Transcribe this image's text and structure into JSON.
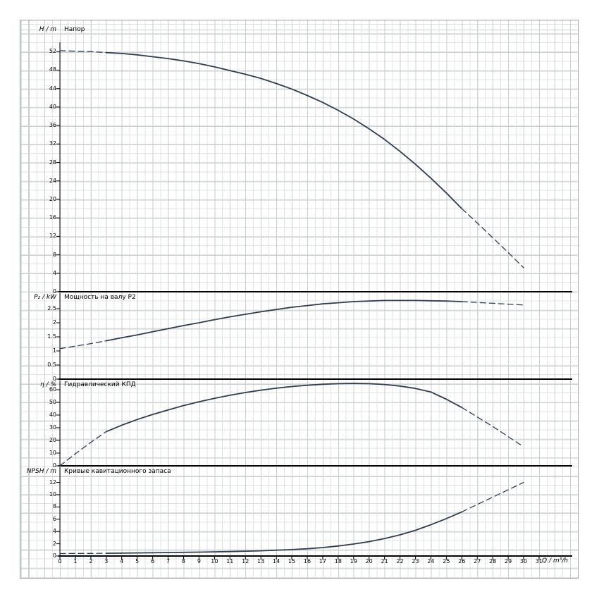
{
  "x_axis": {
    "label": "Q / m³/h",
    "ticks": [
      "0",
      "1",
      "2",
      "3",
      "4",
      "5",
      "6",
      "7",
      "8",
      "9",
      "10",
      "11",
      "12",
      "13",
      "14",
      "15",
      "16",
      "17",
      "18",
      "19",
      "20",
      "21",
      "22",
      "23",
      "24",
      "25",
      "26",
      "27",
      "28",
      "29",
      "30",
      "31"
    ]
  },
  "chart_data": [
    {
      "type": "line",
      "title": "Напор",
      "ylabel": "H / m",
      "xlabel": "Q / m³/h",
      "xlim": [
        0,
        31
      ],
      "ylim": [
        0,
        54
      ],
      "grid": true,
      "y_ticks": [
        0,
        4,
        8,
        12,
        16,
        20,
        24,
        28,
        32,
        36,
        40,
        44,
        48,
        52
      ],
      "y_tick_labels": [
        "0",
        "4",
        "8",
        "12",
        "16",
        "20",
        "24",
        "28",
        "32",
        "36",
        "40",
        "44",
        "48",
        "52"
      ],
      "series": [
        {
          "name": "H(Q) head curve",
          "segments": [
            {
              "dashed": true,
              "points": [
                [
                  0,
                  52.2
                ],
                [
                  1,
                  52.1
                ],
                [
                  2,
                  52.0
                ],
                [
                  3,
                  51.8
                ]
              ]
            },
            {
              "dashed": false,
              "points": [
                [
                  3,
                  51.8
                ],
                [
                  4,
                  51.6
                ],
                [
                  5,
                  51.3
                ],
                [
                  6,
                  50.9
                ],
                [
                  7,
                  50.5
                ],
                [
                  8,
                  50.0
                ],
                [
                  9,
                  49.4
                ],
                [
                  10,
                  48.7
                ],
                [
                  11,
                  47.9
                ],
                [
                  12,
                  47.1
                ],
                [
                  13,
                  46.2
                ],
                [
                  14,
                  45.1
                ],
                [
                  15,
                  43.9
                ],
                [
                  16,
                  42.5
                ],
                [
                  17,
                  41.0
                ],
                [
                  18,
                  39.3
                ],
                [
                  19,
                  37.4
                ],
                [
                  20,
                  35.3
                ],
                [
                  21,
                  33.0
                ],
                [
                  22,
                  30.4
                ],
                [
                  23,
                  27.6
                ],
                [
                  24,
                  24.6
                ],
                [
                  25,
                  21.4
                ],
                [
                  26,
                  18.0
                ]
              ]
            },
            {
              "dashed": true,
              "points": [
                [
                  26,
                  18.0
                ],
                [
                  27,
                  14.9
                ],
                [
                  28,
                  11.7
                ],
                [
                  29,
                  8.5
                ],
                [
                  30,
                  5.2
                ]
              ]
            }
          ]
        }
      ]
    },
    {
      "type": "line",
      "title": "Мощность на валу P2",
      "ylabel": "P₂ / kW",
      "xlim": [
        0,
        31
      ],
      "ylim": [
        0,
        3
      ],
      "grid": true,
      "y_ticks": [
        0,
        0.5,
        1,
        1.5,
        2,
        2.5
      ],
      "y_tick_labels": [
        "0",
        "0.5",
        "1",
        "1.5",
        "2",
        "2.5"
      ],
      "series": [
        {
          "name": "P2(Q) shaft power curve",
          "segments": [
            {
              "dashed": true,
              "points": [
                [
                  0,
                  1.08
                ],
                [
                  1,
                  1.17
                ],
                [
                  2,
                  1.26
                ],
                [
                  3,
                  1.36
                ]
              ]
            },
            {
              "dashed": false,
              "points": [
                [
                  3,
                  1.36
                ],
                [
                  4,
                  1.47
                ],
                [
                  5,
                  1.57
                ],
                [
                  6,
                  1.68
                ],
                [
                  7,
                  1.79
                ],
                [
                  8,
                  1.9
                ],
                [
                  9,
                  2.0
                ],
                [
                  10,
                  2.11
                ],
                [
                  11,
                  2.21
                ],
                [
                  12,
                  2.3
                ],
                [
                  13,
                  2.39
                ],
                [
                  14,
                  2.47
                ],
                [
                  15,
                  2.55
                ],
                [
                  16,
                  2.61
                ],
                [
                  17,
                  2.67
                ],
                [
                  18,
                  2.71
                ],
                [
                  19,
                  2.75
                ],
                [
                  20,
                  2.77
                ],
                [
                  21,
                  2.79
                ],
                [
                  22,
                  2.79
                ],
                [
                  23,
                  2.79
                ],
                [
                  24,
                  2.78
                ],
                [
                  25,
                  2.77
                ],
                [
                  26,
                  2.75
                ]
              ]
            },
            {
              "dashed": true,
              "points": [
                [
                  26,
                  2.75
                ],
                [
                  27,
                  2.72
                ],
                [
                  28,
                  2.69
                ],
                [
                  29,
                  2.66
                ],
                [
                  30,
                  2.63
                ]
              ]
            }
          ]
        }
      ]
    },
    {
      "type": "line",
      "title": "Гидравлический КПД",
      "ylabel": "η / %",
      "xlim": [
        0,
        31
      ],
      "ylim": [
        0,
        67
      ],
      "grid": true,
      "y_ticks": [
        0,
        10,
        20,
        30,
        40,
        50,
        60
      ],
      "y_tick_labels": [
        "0",
        "10",
        "20",
        "30",
        "40",
        "50",
        "60"
      ],
      "series": [
        {
          "name": "eta(Q) hydraulic efficiency curve",
          "segments": [
            {
              "dashed": true,
              "points": [
                [
                  0,
                  0
                ],
                [
                  1,
                  9.5
                ],
                [
                  2,
                  18.5
                ],
                [
                  3,
                  27
                ]
              ]
            },
            {
              "dashed": false,
              "points": [
                [
                  3,
                  27
                ],
                [
                  4,
                  32
                ],
                [
                  5,
                  36.5
                ],
                [
                  6,
                  40.5
                ],
                [
                  7,
                  44
                ],
                [
                  8,
                  47.5
                ],
                [
                  9,
                  50.5
                ],
                [
                  10,
                  53.2
                ],
                [
                  11,
                  55.6
                ],
                [
                  12,
                  57.8
                ],
                [
                  13,
                  59.6
                ],
                [
                  14,
                  61.2
                ],
                [
                  15,
                  62.5
                ],
                [
                  16,
                  63.5
                ],
                [
                  17,
                  64.3
                ],
                [
                  18,
                  64.8
                ],
                [
                  19,
                  65.0
                ],
                [
                  20,
                  64.8
                ],
                [
                  21,
                  64.1
                ],
                [
                  22,
                  62.9
                ],
                [
                  23,
                  61.0
                ],
                [
                  24,
                  58.2
                ],
                [
                  25,
                  52.5
                ],
                [
                  26,
                  46
                ]
              ]
            },
            {
              "dashed": true,
              "points": [
                [
                  26,
                  46
                ],
                [
                  27,
                  38.5
                ],
                [
                  28,
                  31
                ],
                [
                  29,
                  23
                ],
                [
                  30,
                  15
                ]
              ]
            }
          ]
        }
      ]
    },
    {
      "type": "line",
      "title": "Кривые кавитационного запаса",
      "ylabel": "NPSH / m",
      "xlim": [
        0,
        31
      ],
      "ylim": [
        0,
        13
      ],
      "grid": true,
      "y_ticks": [
        0,
        2,
        4,
        6,
        8,
        10,
        12
      ],
      "y_tick_labels": [
        "0",
        "2",
        "4",
        "6",
        "8",
        "10",
        "12"
      ],
      "series": [
        {
          "name": "NPSH(Q) curve",
          "segments": [
            {
              "dashed": true,
              "points": [
                [
                  0,
                  0.4
                ],
                [
                  1,
                  0.42
                ],
                [
                  2,
                  0.43
                ],
                [
                  3,
                  0.45
                ]
              ]
            },
            {
              "dashed": false,
              "points": [
                [
                  3,
                  0.45
                ],
                [
                  5,
                  0.5
                ],
                [
                  7,
                  0.56
                ],
                [
                  9,
                  0.63
                ],
                [
                  11,
                  0.72
                ],
                [
                  13,
                  0.85
                ],
                [
                  15,
                  1.05
                ],
                [
                  16,
                  1.18
                ],
                [
                  17,
                  1.38
                ],
                [
                  18,
                  1.63
                ],
                [
                  19,
                  1.95
                ],
                [
                  20,
                  2.35
                ],
                [
                  21,
                  2.85
                ],
                [
                  22,
                  3.45
                ],
                [
                  23,
                  4.2
                ],
                [
                  24,
                  5.1
                ],
                [
                  25,
                  6.1
                ],
                [
                  26,
                  7.2
                ]
              ]
            },
            {
              "dashed": true,
              "points": [
                [
                  26,
                  7.2
                ],
                [
                  27,
                  8.4
                ],
                [
                  28,
                  9.6
                ],
                [
                  29,
                  10.8
                ],
                [
                  30,
                  12.0
                ]
              ]
            }
          ]
        }
      ]
    }
  ]
}
